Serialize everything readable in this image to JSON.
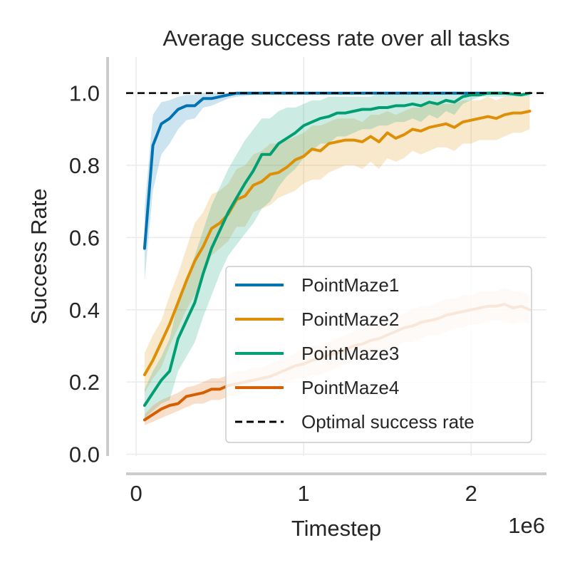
{
  "chart_data": {
    "type": "line",
    "title": "Average success rate over all tasks",
    "xlabel": "Timestep",
    "ylabel": "Success Rate",
    "x_offset_label": "1e6",
    "x_scale": 1000000,
    "xlim": [
      -0.06,
      2.45
    ],
    "ylim": [
      -0.005,
      1.1
    ],
    "x_ticks": [
      0,
      1,
      2
    ],
    "x_tick_labels": [
      "0",
      "1",
      "2"
    ],
    "y_ticks": [
      0.0,
      0.2,
      0.4,
      0.6,
      0.8,
      1.0
    ],
    "y_tick_labels": [
      "0.0",
      "0.2",
      "0.4",
      "0.6",
      "0.8",
      "1.0"
    ],
    "grid": true,
    "legend_position": "lower right",
    "reference_line": {
      "name": "Optimal success rate",
      "y": 1.0,
      "color": "#000000",
      "style": "dashed"
    },
    "series": [
      {
        "name": "PointMaze1",
        "color": "#0173b2",
        "points": [
          [
            0.05,
            0.57,
            0.48,
            0.68
          ],
          [
            0.1,
            0.855,
            0.73,
            0.94
          ],
          [
            0.15,
            0.915,
            0.83,
            0.975
          ],
          [
            0.2,
            0.93,
            0.86,
            0.98
          ],
          [
            0.25,
            0.955,
            0.9,
            0.99
          ],
          [
            0.3,
            0.965,
            0.925,
            0.995
          ],
          [
            0.35,
            0.965,
            0.93,
            0.995
          ],
          [
            0.4,
            0.985,
            0.96,
            1.0
          ],
          [
            0.45,
            0.985,
            0.965,
            1.0
          ],
          [
            0.5,
            0.99,
            0.975,
            1.0
          ],
          [
            0.55,
            0.995,
            0.985,
            1.0
          ],
          [
            0.6,
            1.0,
            0.99,
            1.0
          ],
          [
            0.7,
            1.0,
            0.995,
            1.0
          ],
          [
            0.8,
            1.0,
            1.0,
            1.0
          ],
          [
            1.0,
            1.0,
            1.0,
            1.0
          ],
          [
            1.5,
            1.0,
            1.0,
            1.0
          ],
          [
            2.0,
            1.0,
            1.0,
            1.0
          ],
          [
            2.2,
            1.0,
            1.0,
            1.0
          ]
        ]
      },
      {
        "name": "PointMaze2",
        "color": "#de8f05",
        "points": [
          [
            0.05,
            0.22,
            0.17,
            0.28
          ],
          [
            0.1,
            0.26,
            0.21,
            0.33
          ],
          [
            0.15,
            0.31,
            0.24,
            0.37
          ],
          [
            0.2,
            0.36,
            0.3,
            0.44
          ],
          [
            0.25,
            0.42,
            0.35,
            0.5
          ],
          [
            0.3,
            0.48,
            0.4,
            0.57
          ],
          [
            0.35,
            0.535,
            0.44,
            0.64
          ],
          [
            0.4,
            0.575,
            0.49,
            0.67
          ],
          [
            0.45,
            0.625,
            0.55,
            0.72
          ],
          [
            0.5,
            0.64,
            0.57,
            0.73
          ],
          [
            0.55,
            0.665,
            0.59,
            0.75
          ],
          [
            0.6,
            0.705,
            0.63,
            0.79
          ],
          [
            0.65,
            0.715,
            0.63,
            0.8
          ],
          [
            0.7,
            0.745,
            0.67,
            0.83
          ],
          [
            0.75,
            0.755,
            0.68,
            0.84
          ],
          [
            0.8,
            0.775,
            0.69,
            0.86
          ],
          [
            0.85,
            0.78,
            0.71,
            0.86
          ],
          [
            0.9,
            0.795,
            0.72,
            0.87
          ],
          [
            0.95,
            0.815,
            0.73,
            0.88
          ],
          [
            1.0,
            0.825,
            0.75,
            0.89
          ],
          [
            1.05,
            0.845,
            0.76,
            0.91
          ],
          [
            1.1,
            0.84,
            0.76,
            0.91
          ],
          [
            1.15,
            0.86,
            0.78,
            0.92
          ],
          [
            1.2,
            0.865,
            0.79,
            0.93
          ],
          [
            1.25,
            0.87,
            0.8,
            0.93
          ],
          [
            1.3,
            0.87,
            0.8,
            0.93
          ],
          [
            1.35,
            0.865,
            0.79,
            0.92
          ],
          [
            1.4,
            0.88,
            0.81,
            0.94
          ],
          [
            1.45,
            0.865,
            0.79,
            0.94
          ],
          [
            1.5,
            0.89,
            0.82,
            0.95
          ],
          [
            1.55,
            0.875,
            0.81,
            0.94
          ],
          [
            1.6,
            0.885,
            0.82,
            0.95
          ],
          [
            1.65,
            0.9,
            0.84,
            0.96
          ],
          [
            1.7,
            0.895,
            0.83,
            0.96
          ],
          [
            1.75,
            0.905,
            0.84,
            0.97
          ],
          [
            1.8,
            0.91,
            0.85,
            0.97
          ],
          [
            1.85,
            0.915,
            0.85,
            0.97
          ],
          [
            1.9,
            0.905,
            0.84,
            0.97
          ],
          [
            1.95,
            0.92,
            0.86,
            0.98
          ],
          [
            2.0,
            0.925,
            0.86,
            0.98
          ],
          [
            2.05,
            0.93,
            0.87,
            0.98
          ],
          [
            2.1,
            0.935,
            0.87,
            0.99
          ],
          [
            2.15,
            0.93,
            0.87,
            0.98
          ],
          [
            2.2,
            0.94,
            0.88,
            0.99
          ],
          [
            2.25,
            0.945,
            0.89,
            0.99
          ],
          [
            2.3,
            0.945,
            0.89,
            0.99
          ],
          [
            2.35,
            0.95,
            0.9,
            0.99
          ]
        ]
      },
      {
        "name": "PointMaze3",
        "color": "#029e73",
        "points": [
          [
            0.05,
            0.135,
            0.1,
            0.18
          ],
          [
            0.1,
            0.17,
            0.12,
            0.23
          ],
          [
            0.15,
            0.205,
            0.14,
            0.27
          ],
          [
            0.2,
            0.23,
            0.15,
            0.32
          ],
          [
            0.25,
            0.32,
            0.23,
            0.42
          ],
          [
            0.3,
            0.37,
            0.27,
            0.48
          ],
          [
            0.35,
            0.42,
            0.31,
            0.55
          ],
          [
            0.4,
            0.5,
            0.38,
            0.62
          ],
          [
            0.45,
            0.57,
            0.44,
            0.69
          ],
          [
            0.5,
            0.62,
            0.5,
            0.74
          ],
          [
            0.55,
            0.67,
            0.55,
            0.79
          ],
          [
            0.6,
            0.71,
            0.58,
            0.83
          ],
          [
            0.65,
            0.75,
            0.61,
            0.87
          ],
          [
            0.7,
            0.785,
            0.64,
            0.9
          ],
          [
            0.75,
            0.83,
            0.68,
            0.93
          ],
          [
            0.8,
            0.83,
            0.7,
            0.93
          ],
          [
            0.85,
            0.86,
            0.74,
            0.95
          ],
          [
            0.9,
            0.875,
            0.77,
            0.96
          ],
          [
            0.95,
            0.89,
            0.79,
            0.96
          ],
          [
            1.0,
            0.91,
            0.82,
            0.97
          ],
          [
            1.05,
            0.92,
            0.84,
            0.98
          ],
          [
            1.1,
            0.93,
            0.86,
            0.98
          ],
          [
            1.15,
            0.935,
            0.86,
            0.99
          ],
          [
            1.2,
            0.945,
            0.88,
            0.99
          ],
          [
            1.25,
            0.945,
            0.88,
            0.99
          ],
          [
            1.3,
            0.95,
            0.89,
            0.99
          ],
          [
            1.35,
            0.955,
            0.9,
            0.99
          ],
          [
            1.4,
            0.955,
            0.9,
            0.99
          ],
          [
            1.45,
            0.96,
            0.91,
            1.0
          ],
          [
            1.5,
            0.96,
            0.91,
            1.0
          ],
          [
            1.55,
            0.965,
            0.92,
            1.0
          ],
          [
            1.6,
            0.965,
            0.92,
            1.0
          ],
          [
            1.65,
            0.97,
            0.93,
            1.0
          ],
          [
            1.7,
            0.965,
            0.92,
            1.0
          ],
          [
            1.75,
            0.975,
            0.94,
            1.0
          ],
          [
            1.8,
            0.97,
            0.93,
            1.0
          ],
          [
            1.85,
            0.98,
            0.95,
            1.0
          ],
          [
            1.9,
            0.975,
            0.94,
            1.0
          ],
          [
            1.95,
            0.99,
            0.97,
            1.0
          ],
          [
            2.0,
            0.995,
            0.98,
            1.0
          ],
          [
            2.05,
            0.995,
            0.99,
            1.0
          ],
          [
            2.1,
            1.0,
            0.99,
            1.0
          ],
          [
            2.2,
            1.0,
            0.99,
            1.0
          ],
          [
            2.3,
            0.995,
            0.99,
            1.0
          ],
          [
            2.35,
            1.0,
            0.99,
            1.0
          ]
        ]
      },
      {
        "name": "PointMaze4",
        "color": "#d55e00",
        "points": [
          [
            0.05,
            0.095,
            0.08,
            0.11
          ],
          [
            0.1,
            0.11,
            0.09,
            0.135
          ],
          [
            0.15,
            0.125,
            0.1,
            0.15
          ],
          [
            0.2,
            0.135,
            0.11,
            0.16
          ],
          [
            0.25,
            0.14,
            0.12,
            0.17
          ],
          [
            0.3,
            0.16,
            0.13,
            0.185
          ],
          [
            0.35,
            0.165,
            0.14,
            0.19
          ],
          [
            0.4,
            0.17,
            0.14,
            0.2
          ],
          [
            0.45,
            0.18,
            0.15,
            0.21
          ],
          [
            0.5,
            0.18,
            0.15,
            0.21
          ],
          [
            0.55,
            0.19,
            0.16,
            0.22
          ],
          [
            0.6,
            0.195,
            0.16,
            0.23
          ],
          [
            0.65,
            0.2,
            0.17,
            0.23
          ],
          [
            0.7,
            0.205,
            0.17,
            0.24
          ],
          [
            0.75,
            0.21,
            0.18,
            0.24
          ],
          [
            0.8,
            0.215,
            0.18,
            0.25
          ],
          [
            0.85,
            0.225,
            0.19,
            0.26
          ],
          [
            0.9,
            0.235,
            0.2,
            0.27
          ],
          [
            0.95,
            0.245,
            0.21,
            0.28
          ],
          [
            1.0,
            0.25,
            0.21,
            0.29
          ],
          [
            1.05,
            0.26,
            0.22,
            0.3
          ],
          [
            1.1,
            0.265,
            0.22,
            0.3
          ],
          [
            1.15,
            0.275,
            0.23,
            0.31
          ],
          [
            1.2,
            0.28,
            0.24,
            0.32
          ],
          [
            1.25,
            0.29,
            0.25,
            0.33
          ],
          [
            1.3,
            0.3,
            0.26,
            0.34
          ],
          [
            1.35,
            0.305,
            0.26,
            0.35
          ],
          [
            1.4,
            0.315,
            0.27,
            0.36
          ],
          [
            1.45,
            0.32,
            0.28,
            0.36
          ],
          [
            1.5,
            0.33,
            0.29,
            0.37
          ],
          [
            1.55,
            0.34,
            0.3,
            0.38
          ],
          [
            1.6,
            0.35,
            0.31,
            0.39
          ],
          [
            1.65,
            0.355,
            0.31,
            0.4
          ],
          [
            1.7,
            0.365,
            0.32,
            0.41
          ],
          [
            1.75,
            0.37,
            0.33,
            0.41
          ],
          [
            1.8,
            0.375,
            0.33,
            0.42
          ],
          [
            1.85,
            0.385,
            0.34,
            0.43
          ],
          [
            1.9,
            0.39,
            0.35,
            0.43
          ],
          [
            1.95,
            0.395,
            0.35,
            0.44
          ],
          [
            2.0,
            0.4,
            0.36,
            0.44
          ],
          [
            2.05,
            0.405,
            0.36,
            0.45
          ],
          [
            2.1,
            0.41,
            0.37,
            0.45
          ],
          [
            2.15,
            0.41,
            0.37,
            0.45
          ],
          [
            2.2,
            0.415,
            0.37,
            0.46
          ],
          [
            2.25,
            0.405,
            0.36,
            0.45
          ],
          [
            2.3,
            0.41,
            0.37,
            0.45
          ],
          [
            2.35,
            0.4,
            0.36,
            0.44
          ]
        ]
      }
    ]
  }
}
